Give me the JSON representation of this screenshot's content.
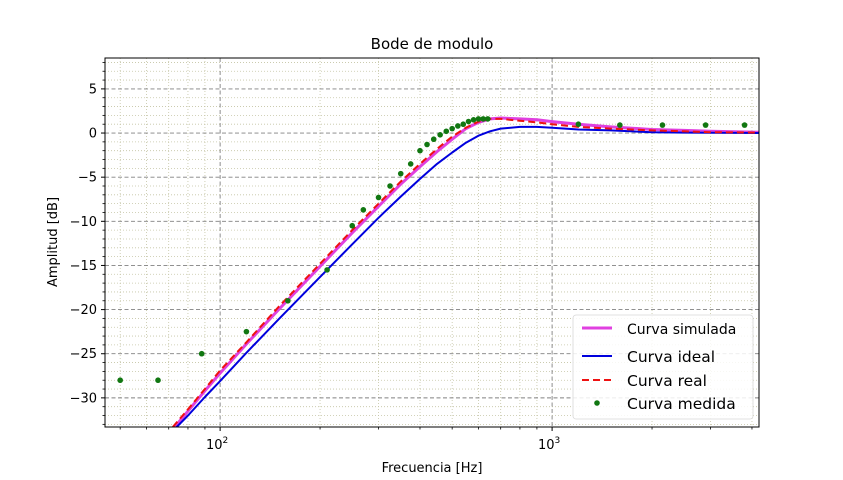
{
  "chart_data": {
    "type": "line",
    "title": "Bode de modulo",
    "xlabel": "Frecuencia [Hz]",
    "ylabel": "Amplitud [dB]",
    "x_scale": "log",
    "xlim": [
      45,
      4200
    ],
    "ylim": [
      -33.3,
      8.5
    ],
    "x_ticks": [
      {
        "value": 100,
        "base": "10",
        "exp": "2"
      },
      {
        "value": 1000,
        "base": "10",
        "exp": "3"
      }
    ],
    "y_ticks": [
      {
        "value": 5,
        "label": "5"
      },
      {
        "value": 0,
        "label": "0"
      },
      {
        "value": -5,
        "label": "−5"
      },
      {
        "value": -10,
        "label": "−10"
      },
      {
        "value": -15,
        "label": "−15"
      },
      {
        "value": -20,
        "label": "−20"
      },
      {
        "value": -25,
        "label": "−25"
      },
      {
        "value": -30,
        "label": "−30"
      }
    ],
    "grid": true,
    "legend_position": "lower-right",
    "series": [
      {
        "name": "Curva simulada",
        "color": "#e040e0",
        "style": "solid",
        "x": [
          73,
          80,
          90,
          100,
          120,
          150,
          200,
          250,
          300,
          350,
          400,
          450,
          500,
          550,
          600,
          650,
          700,
          800,
          900,
          1000,
          1200,
          1500,
          2000,
          2500,
          3000,
          4200
        ],
        "y": [
          -33.3,
          -31.5,
          -29.2,
          -27.2,
          -23.9,
          -20.0,
          -15.1,
          -11.3,
          -8.3,
          -5.8,
          -3.8,
          -2.1,
          -0.7,
          0.5,
          1.2,
          1.6,
          1.7,
          1.6,
          1.5,
          1.3,
          1.0,
          0.7,
          0.4,
          0.3,
          0.2,
          0.1
        ]
      },
      {
        "name": "Curva ideal",
        "color": "#0000dd",
        "style": "solid",
        "x": [
          74,
          80,
          90,
          100,
          120,
          150,
          200,
          250,
          300,
          350,
          400,
          450,
          500,
          550,
          600,
          650,
          700,
          800,
          900,
          1000,
          1200,
          1500,
          2000,
          2500,
          3000,
          4200
        ],
        "y": [
          -33.3,
          -32.0,
          -29.9,
          -28.1,
          -24.9,
          -21.1,
          -16.3,
          -12.6,
          -9.6,
          -7.2,
          -5.2,
          -3.5,
          -2.2,
          -1.1,
          -0.3,
          0.2,
          0.5,
          0.7,
          0.7,
          0.6,
          0.4,
          0.3,
          0.1,
          0.05,
          0.03,
          0.0
        ]
      },
      {
        "name": "Curva real",
        "color": "#ee1111",
        "style": "dashed",
        "x": [
          72,
          80,
          90,
          100,
          120,
          150,
          200,
          250,
          300,
          350,
          400,
          450,
          500,
          550,
          600,
          650,
          700,
          800,
          900,
          1000,
          1200,
          1500,
          2000,
          2500,
          3000,
          4200
        ],
        "y": [
          -33.3,
          -31.3,
          -29.0,
          -26.9,
          -23.7,
          -19.7,
          -14.8,
          -11.0,
          -8.0,
          -5.5,
          -3.5,
          -1.8,
          -0.4,
          0.6,
          1.3,
          1.6,
          1.6,
          1.4,
          1.2,
          1.0,
          0.7,
          0.5,
          0.3,
          0.2,
          0.1,
          0.05
        ]
      },
      {
        "name": "Curva medida",
        "color": "#117711",
        "style": "markers",
        "x": [
          50,
          65,
          88,
          120,
          160,
          210,
          250,
          270,
          300,
          325,
          350,
          375,
          400,
          420,
          440,
          460,
          480,
          500,
          520,
          540,
          560,
          580,
          600,
          620,
          640,
          1200,
          1600,
          2150,
          2900,
          3800
        ],
        "y": [
          -28.0,
          -28.0,
          -25.0,
          -22.5,
          -19.0,
          -15.5,
          -10.5,
          -8.7,
          -7.3,
          -6.0,
          -4.6,
          -3.5,
          -2.0,
          -1.3,
          -0.7,
          -0.2,
          0.2,
          0.5,
          0.8,
          1.0,
          1.3,
          1.5,
          1.6,
          1.6,
          1.6,
          1.0,
          0.9,
          0.9,
          0.9,
          0.9
        ]
      }
    ]
  }
}
